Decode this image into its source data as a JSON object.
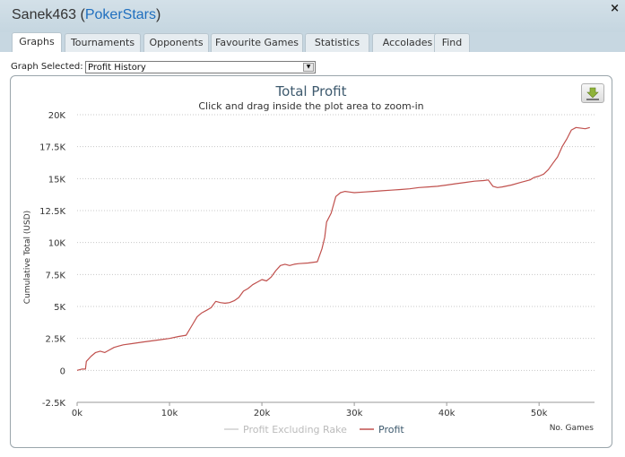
{
  "window": {
    "player": "Sanek463",
    "site": "PokerStars",
    "close_label": "×"
  },
  "tabs": [
    {
      "label": "Graphs",
      "active": true
    },
    {
      "label": "Tournaments"
    },
    {
      "label": "Opponents"
    },
    {
      "label": "Favourite Games"
    },
    {
      "label": "Statistics"
    },
    {
      "label": "Accolades"
    },
    {
      "label": "Find"
    }
  ],
  "graph_selector": {
    "label": "Graph Selected:",
    "value": "Profit History"
  },
  "export_icon": "download-icon",
  "colors": {
    "profit": "#c0504d",
    "excluding_rake": "#cfcfcf",
    "title": "#3e5a6e",
    "link": "#1f6fbf"
  },
  "chart_data": {
    "type": "line",
    "title": "Total Profit",
    "subtitle": "Click and drag inside the plot area to zoom-in",
    "xlabel": "No. Games",
    "ylabel": "Cumulative Total (USD)",
    "xlim": [
      0,
      56000
    ],
    "ylim": [
      -2500,
      20000
    ],
    "x_ticks": [
      0,
      10000,
      20000,
      30000,
      40000,
      50000
    ],
    "x_tick_labels": [
      "0k",
      "10k",
      "20k",
      "30k",
      "40k",
      "50k"
    ],
    "y_ticks": [
      -2500,
      0,
      2500,
      5000,
      7500,
      10000,
      12500,
      15000,
      17500,
      20000
    ],
    "y_tick_labels": [
      "-2.5K",
      "0",
      "2.5K",
      "5K",
      "7.5K",
      "10K",
      "12.5K",
      "15K",
      "17.5K",
      "20K"
    ],
    "grid": true,
    "legend_position": "bottom",
    "series": [
      {
        "name": "Profit Excluding Rake",
        "x": [],
        "y": [],
        "visible": false
      },
      {
        "name": "Profit",
        "x": [
          0,
          500,
          900,
          1000,
          1500,
          2000,
          2500,
          3000,
          3500,
          4000,
          4500,
          5000,
          6000,
          7000,
          8000,
          9000,
          10000,
          11000,
          11800,
          12500,
          13000,
          13500,
          14000,
          14500,
          15000,
          15500,
          16000,
          16500,
          17000,
          17500,
          18000,
          18500,
          19000,
          19500,
          20000,
          20500,
          21000,
          21500,
          22000,
          22500,
          23000,
          23500,
          24000,
          25000,
          26000,
          26500,
          26800,
          27000,
          27500,
          28000,
          28500,
          29000,
          29500,
          30000,
          31000,
          32000,
          33000,
          34000,
          35000,
          36000,
          37000,
          38000,
          39000,
          40000,
          41000,
          42000,
          43000,
          44000,
          44500,
          45000,
          45500,
          46000,
          47000,
          48000,
          49000,
          49500,
          50000,
          50500,
          51000,
          51500,
          52000,
          52500,
          53000,
          53500,
          54000,
          55000,
          55500
        ],
        "y": [
          0,
          100,
          100,
          700,
          1100,
          1400,
          1500,
          1400,
          1600,
          1800,
          1900,
          2000,
          2100,
          2200,
          2300,
          2400,
          2500,
          2650,
          2750,
          3600,
          4200,
          4500,
          4700,
          4900,
          5400,
          5300,
          5250,
          5300,
          5450,
          5700,
          6200,
          6400,
          6700,
          6900,
          7100,
          7000,
          7300,
          7800,
          8200,
          8300,
          8200,
          8300,
          8350,
          8400,
          8500,
          9500,
          10400,
          11600,
          12300,
          13600,
          13900,
          14000,
          13950,
          13900,
          13950,
          14000,
          14050,
          14100,
          14150,
          14200,
          14300,
          14350,
          14400,
          14500,
          14600,
          14700,
          14800,
          14850,
          14900,
          14400,
          14300,
          14350,
          14500,
          14700,
          14900,
          15100,
          15200,
          15350,
          15700,
          16200,
          16700,
          17500,
          18100,
          18800,
          19000,
          18900,
          19000
        ]
      }
    ]
  }
}
